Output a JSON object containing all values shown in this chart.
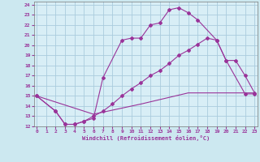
{
  "background_color": "#cce8f0",
  "grid_color": "#aaccdd",
  "line_color": "#993399",
  "plot_bg": "#d8eef6",
  "xlim": [
    -0.3,
    23.3
  ],
  "ylim": [
    12,
    24.3
  ],
  "xticks": [
    0,
    1,
    2,
    3,
    4,
    5,
    6,
    7,
    8,
    9,
    10,
    11,
    12,
    13,
    14,
    15,
    16,
    17,
    18,
    19,
    20,
    21,
    22,
    23
  ],
  "yticks": [
    12,
    13,
    14,
    15,
    16,
    17,
    18,
    19,
    20,
    21,
    22,
    23,
    24
  ],
  "xlabel": "Windchill (Refroidissement éolien,°C)",
  "curve1_x": [
    0,
    2,
    3,
    4,
    5,
    6,
    7,
    9,
    10,
    11,
    12,
    13,
    14,
    15,
    16,
    17,
    19,
    20,
    22,
    23
  ],
  "curve1_y": [
    15.0,
    13.5,
    12.2,
    12.2,
    12.5,
    12.8,
    16.8,
    20.5,
    20.7,
    20.7,
    22.0,
    22.2,
    23.5,
    23.7,
    23.2,
    22.5,
    20.5,
    18.5,
    15.2,
    15.2
  ],
  "curve2_x": [
    0,
    2,
    3,
    4,
    5,
    6,
    7,
    8,
    9,
    10,
    11,
    12,
    13,
    14,
    15,
    16,
    17,
    18,
    19,
    20,
    21,
    22,
    23
  ],
  "curve2_y": [
    15.0,
    13.5,
    12.2,
    12.2,
    12.5,
    13.0,
    13.5,
    14.2,
    15.0,
    15.7,
    16.3,
    17.0,
    17.5,
    18.2,
    19.0,
    19.5,
    20.1,
    20.7,
    20.5,
    18.5,
    18.5,
    17.0,
    15.3
  ],
  "curve3_x": [
    0,
    6,
    11,
    16,
    23
  ],
  "curve3_y": [
    15.0,
    13.2,
    14.2,
    15.3,
    15.3
  ]
}
